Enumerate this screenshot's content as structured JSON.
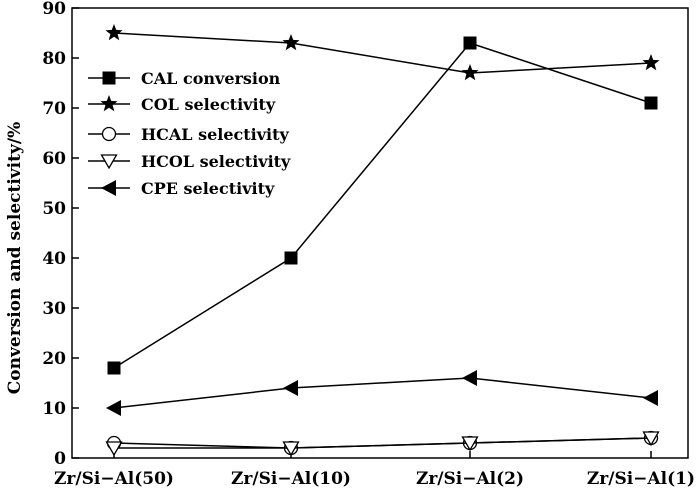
{
  "chart_data": {
    "type": "line",
    "title": "",
    "xlabel": "",
    "ylabel": "Conversion and selectivity/%",
    "ylim": [
      0,
      90
    ],
    "yticks": [
      "0",
      "10",
      "20",
      "30",
      "40",
      "50",
      "60",
      "70",
      "80",
      "90"
    ],
    "categories": [
      "Zr/Si−Al(50)",
      "Zr/Si−Al(10)",
      "Zr/Si−Al(2)",
      "Zr/Si−Al(1)"
    ],
    "grid": false,
    "legend_position": "top-left",
    "series": [
      {
        "name": "CAL conversion",
        "marker": "filled-square",
        "values": [
          18,
          40,
          83,
          71
        ]
      },
      {
        "name": "COL selectivity",
        "marker": "filled-star",
        "values": [
          85,
          83,
          77,
          79
        ]
      },
      {
        "name": "HCAL selectivity",
        "marker": "open-circle",
        "values": [
          3,
          2,
          3,
          4
        ]
      },
      {
        "name": "HCOL selectivity",
        "marker": "open-triangle-down",
        "values": [
          2,
          2,
          3,
          4
        ]
      },
      {
        "name": "CPE selectivity",
        "marker": "filled-triangle-left",
        "values": [
          10,
          14,
          16,
          12
        ]
      }
    ],
    "colors": {
      "line": "#000000",
      "background": "#ffffff"
    }
  }
}
